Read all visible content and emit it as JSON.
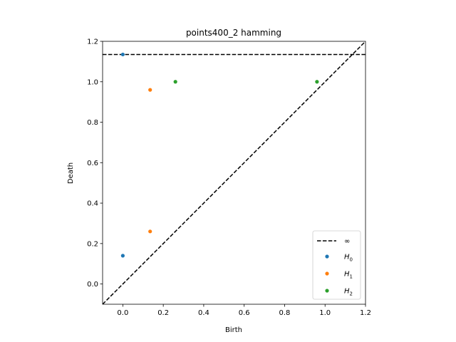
{
  "chart_data": {
    "type": "scatter",
    "title": "points400_2 hamming",
    "xlabel": "Birth",
    "ylabel": "Death",
    "xlim": [
      -0.1,
      1.2
    ],
    "ylim": [
      -0.1,
      1.2
    ],
    "xticks": [
      "0.0",
      "0.2",
      "0.4",
      "0.6",
      "0.8",
      "1.0",
      "1.2"
    ],
    "xtick_values": [
      0.0,
      0.2,
      0.4,
      0.6,
      0.8,
      1.0,
      1.2
    ],
    "yticks": [
      "0.0",
      "0.2",
      "0.4",
      "0.6",
      "0.8",
      "1.0",
      "1.2"
    ],
    "ytick_values": [
      0.0,
      0.2,
      0.4,
      0.6,
      0.8,
      1.0,
      1.2
    ],
    "grid": false,
    "legend_position": "lower-right",
    "infinity_line": {
      "label": "∞",
      "y": 1.135
    },
    "diagonal": true,
    "series": [
      {
        "name": "H0",
        "sub": "0",
        "color": "#1f77b4",
        "points": [
          [
            0.0,
            0.14
          ],
          [
            0.0,
            1.135
          ]
        ]
      },
      {
        "name": "H1",
        "sub": "1",
        "color": "#ff7f0e",
        "points": [
          [
            0.135,
            0.26
          ],
          [
            0.135,
            0.96
          ]
        ]
      },
      {
        "name": "H2",
        "sub": "2",
        "color": "#2ca02c",
        "points": [
          [
            0.26,
            1.0
          ],
          [
            0.96,
            1.0
          ]
        ]
      }
    ]
  }
}
